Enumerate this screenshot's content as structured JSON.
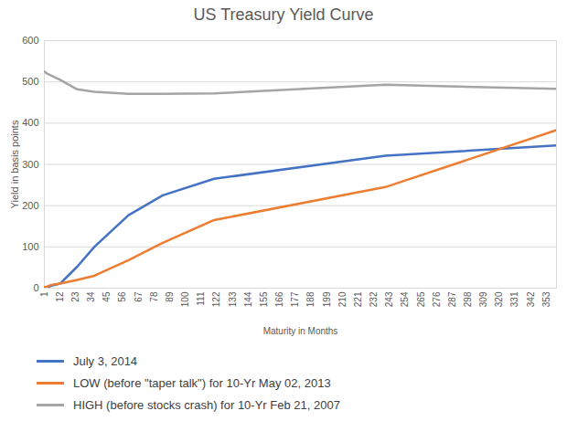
{
  "chart_data": {
    "type": "line",
    "title": "US Treasury Yield Curve",
    "x_label": "Maturity in Months",
    "y_label": "Yield in basis points",
    "x": [
      1,
      3,
      6,
      12,
      24,
      36,
      60,
      84,
      120,
      240,
      360
    ],
    "series": [
      {
        "name": "July 3, 2014",
        "color": "#4472c4",
        "values": [
          2,
          2,
          6,
          11,
          52,
          100,
          177,
          225,
          265,
          321,
          346
        ]
      },
      {
        "name": "LOW (before \"taper talk\") for 10-Yr May 02, 2013",
        "color": "#ed7d31",
        "values": [
          3,
          4,
          8,
          11,
          20,
          30,
          68,
          110,
          165,
          245,
          383
        ]
      },
      {
        "name": "HIGH (before stocks crash) for 10-Yr Feb 21, 2007",
        "color": "#a5a5a5",
        "values": [
          525,
          520,
          515,
          505,
          482,
          476,
          471,
          471,
          472,
          493,
          483
        ]
      }
    ],
    "xlim": [
      1,
      360
    ],
    "xticks": [
      1,
      12,
      23,
      34,
      45,
      56,
      67,
      78,
      89,
      100,
      111,
      122,
      133,
      144,
      155,
      166,
      177,
      188,
      199,
      210,
      221,
      232,
      243,
      254,
      265,
      276,
      287,
      298,
      309,
      320,
      331,
      342,
      353
    ],
    "ylim": [
      0,
      600
    ],
    "yticks": [
      0,
      100,
      200,
      300,
      400,
      500,
      600
    ],
    "grid": true,
    "legend": "bottom"
  }
}
